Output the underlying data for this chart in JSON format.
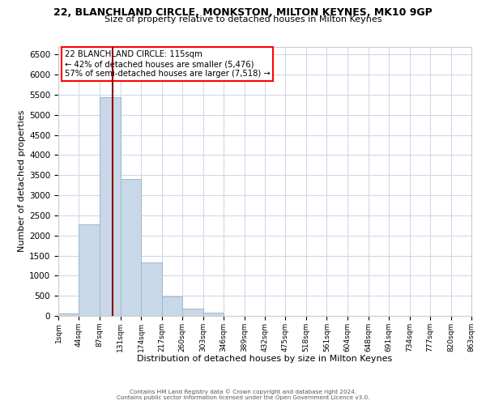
{
  "title": "22, BLANCHLAND CIRCLE, MONKSTON, MILTON KEYNES, MK10 9GP",
  "subtitle": "Size of property relative to detached houses in Milton Keynes",
  "xlabel": "Distribution of detached houses by size in Milton Keynes",
  "ylabel": "Number of detached properties",
  "bar_color": "#c8d8e8",
  "bar_edge_color": "#a0b8cc",
  "bin_edges": [
    1,
    44,
    87,
    131,
    174,
    217,
    260,
    303,
    346,
    389,
    432,
    475,
    518,
    561,
    604,
    648,
    691,
    734,
    777,
    820,
    863
  ],
  "bin_labels": [
    "1sqm",
    "44sqm",
    "87sqm",
    "131sqm",
    "174sqm",
    "217sqm",
    "260sqm",
    "303sqm",
    "346sqm",
    "389sqm",
    "432sqm",
    "475sqm",
    "518sqm",
    "561sqm",
    "604sqm",
    "648sqm",
    "691sqm",
    "734sqm",
    "777sqm",
    "820sqm",
    "863sqm"
  ],
  "bar_heights": [
    60,
    2280,
    5450,
    3400,
    1320,
    480,
    185,
    80,
    0,
    0,
    0,
    0,
    0,
    0,
    0,
    0,
    0,
    0,
    0,
    0
  ],
  "ylim": [
    0,
    6700
  ],
  "yticks": [
    0,
    500,
    1000,
    1500,
    2000,
    2500,
    3000,
    3500,
    4000,
    4500,
    5000,
    5500,
    6000,
    6500
  ],
  "annotation_title": "22 BLANCHLAND CIRCLE: 115sqm",
  "annotation_line1": "← 42% of detached houses are smaller (5,476)",
  "annotation_line2": "57% of semi-detached houses are larger (7,518) →",
  "vline_x": 115,
  "footer_line1": "Contains HM Land Registry data © Crown copyright and database right 2024.",
  "footer_line2": "Contains public sector information licensed under the Open Government Licence v3.0.",
  "background_color": "#ffffff",
  "grid_color": "#d0d8e8"
}
